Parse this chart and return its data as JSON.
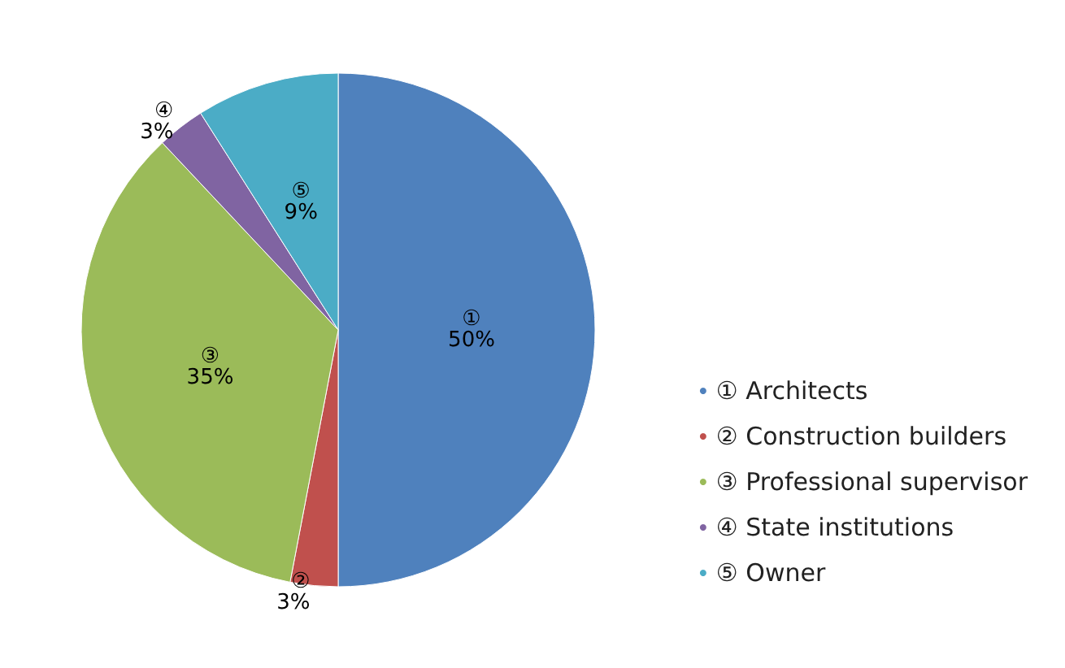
{
  "chart_data": {
    "type": "pie",
    "categories": [
      "① Architects",
      "② Construction builders",
      "③ Professional supervisor",
      "④ State institutions",
      "⑤ Owner"
    ],
    "values": [
      50,
      3,
      35,
      3,
      9
    ],
    "colors": [
      "#4f81bd",
      "#c0504d",
      "#9bbb59",
      "#8064a2",
      "#4bacc6"
    ],
    "value_labels": [
      "①\n50%",
      "②\n3%",
      "③\n35%",
      "④\n3%",
      "⑤\n9%"
    ],
    "legend": "right"
  }
}
